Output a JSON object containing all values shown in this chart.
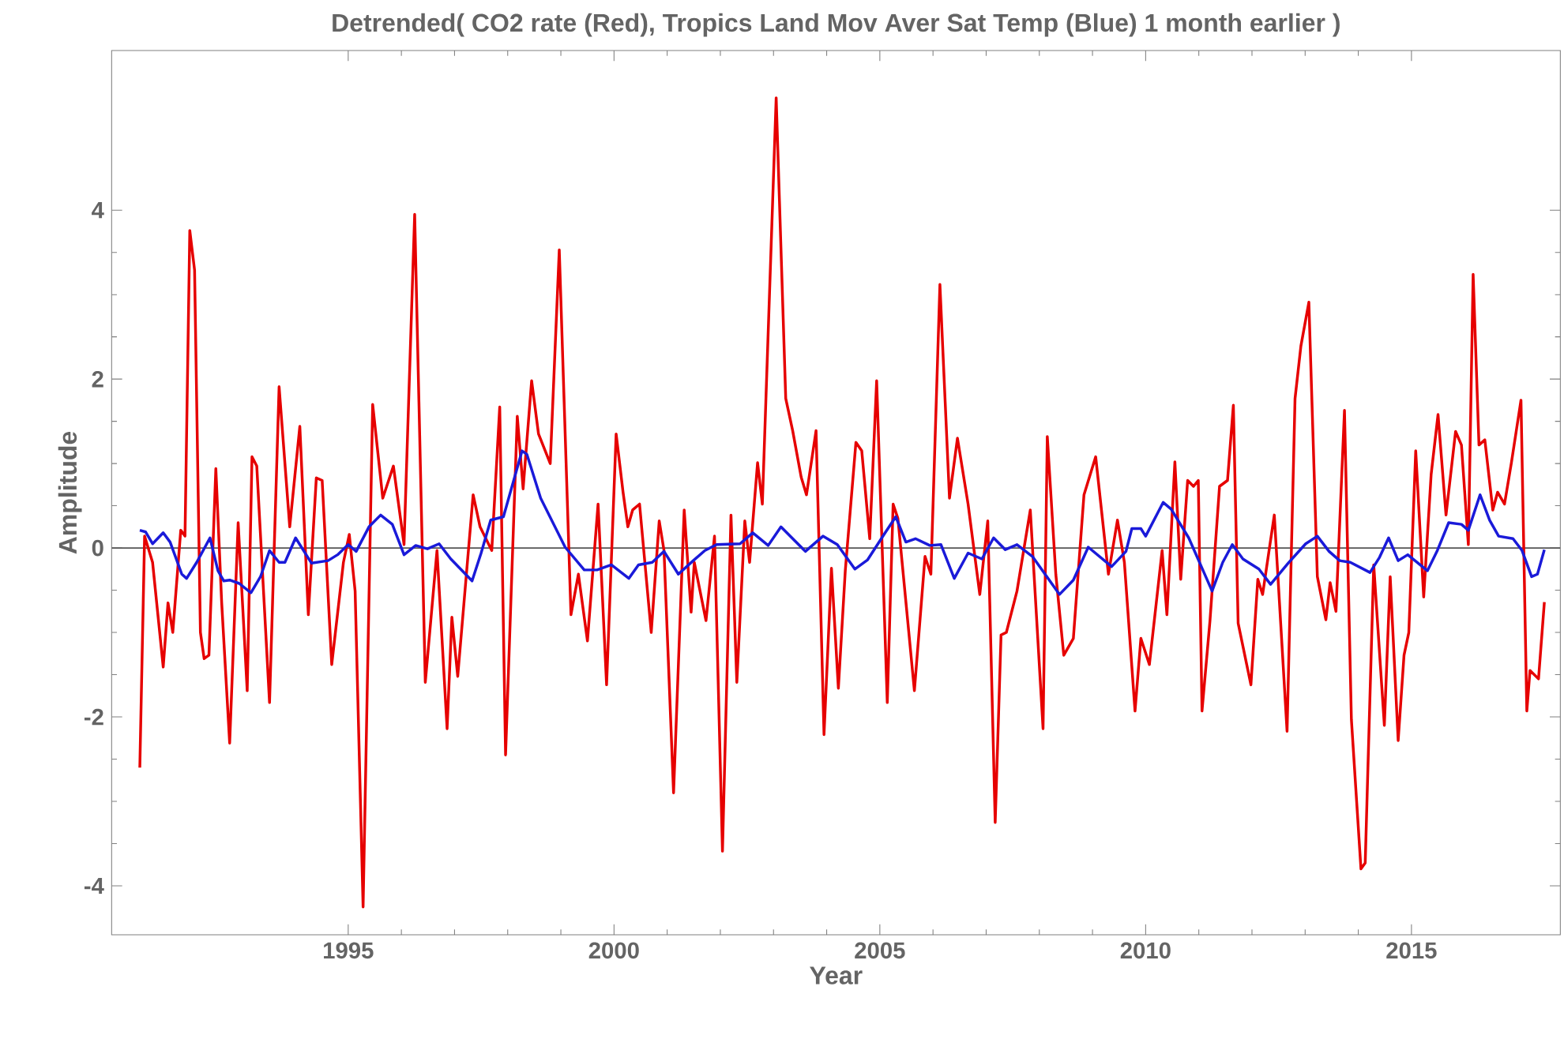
{
  "chart_data": {
    "type": "line",
    "title": "Detrended( CO2 rate (Red), Tropics Land Mov Aver Sat Temp (Blue) 1 month earlier )",
    "xlabel": "Year",
    "ylabel": "Amplitude",
    "xlim": [
      1990.55,
      2017.8
    ],
    "xticks": [
      1995,
      2000,
      2005,
      2010,
      2015
    ],
    "ylim": [
      -4.58,
      5.89
    ],
    "yticks": [
      -4,
      -2,
      0,
      2,
      4
    ],
    "ref_lines": [
      {
        "axis": "y",
        "value": 0,
        "color": "#555555"
      }
    ],
    "series": [
      {
        "color": "#e60000",
        "x": [
          1991.08,
          1991.17,
          1991.32,
          1991.52,
          1991.61,
          1991.7,
          1991.85,
          1991.93,
          1992.02,
          1992.11,
          1992.22,
          1992.29,
          1992.38,
          1992.51,
          1992.62,
          1992.77,
          1992.93,
          1993.1,
          1993.19,
          1993.28,
          1993.52,
          1993.7,
          1993.9,
          1994.09,
          1994.25,
          1994.4,
          1994.51,
          1994.69,
          1994.91,
          1995.02,
          1995.13,
          1995.28,
          1995.46,
          1995.65,
          1995.85,
          1996.05,
          1996.25,
          1996.45,
          1996.67,
          1996.86,
          1996.95,
          1997.06,
          1997.35,
          1997.48,
          1997.7,
          1997.85,
          1997.96,
          1998.18,
          1998.29,
          1998.45,
          1998.58,
          1998.8,
          1998.97,
          1999.19,
          1999.33,
          1999.5,
          1999.7,
          1999.86,
          2000.04,
          2000.17,
          2000.26,
          2000.35,
          2000.48,
          2000.7,
          2000.85,
          2000.94,
          2001.12,
          2001.32,
          2001.45,
          2001.51,
          2001.73,
          2001.89,
          2002.04,
          2002.2,
          2002.31,
          2002.46,
          2002.55,
          2002.7,
          2002.79,
          2003.05,
          2003.23,
          2003.36,
          2003.52,
          2003.62,
          2003.8,
          2003.95,
          2004.09,
          2004.22,
          2004.35,
          2004.55,
          2004.66,
          2004.81,
          2004.94,
          2005.14,
          2005.25,
          2005.34,
          2005.65,
          2005.85,
          2005.96,
          2006.13,
          2006.31,
          2006.46,
          2006.66,
          2006.88,
          2007.03,
          2007.17,
          2007.28,
          2007.38,
          2007.58,
          2007.83,
          2008.07,
          2008.15,
          2008.31,
          2008.46,
          2008.64,
          2008.84,
          2009.06,
          2009.3,
          2009.47,
          2009.6,
          2009.8,
          2009.91,
          2010.07,
          2010.31,
          2010.4,
          2010.55,
          2010.66,
          2010.79,
          2010.9,
          2010.99,
          2011.06,
          2011.21,
          2011.39,
          2011.54,
          2011.65,
          2011.74,
          2011.98,
          2012.11,
          2012.2,
          2012.42,
          2012.66,
          2012.81,
          2012.92,
          2013.07,
          2013.23,
          2013.39,
          2013.47,
          2013.58,
          2013.74,
          2013.87,
          2014.05,
          2014.13,
          2014.29,
          2014.49,
          2014.6,
          2014.75,
          2014.86,
          2014.95,
          2015.08,
          2015.23,
          2015.37,
          2015.5,
          2015.65,
          2015.83,
          2015.94,
          2016.07,
          2016.16,
          2016.27,
          2016.38,
          2016.53,
          2016.62,
          2016.75,
          2016.88,
          2017.06,
          2017.17,
          2017.23,
          2017.39,
          2017.5
        ],
        "values": [
          -2.6,
          0.14,
          -0.17,
          -1.41,
          -0.65,
          -1.0,
          0.21,
          0.14,
          3.76,
          3.29,
          -1.0,
          -1.31,
          -1.27,
          0.94,
          -0.65,
          -2.31,
          0.3,
          -1.69,
          1.08,
          0.97,
          -1.83,
          1.91,
          0.25,
          1.44,
          -0.79,
          0.83,
          0.8,
          -1.38,
          -0.17,
          0.16,
          -0.51,
          -4.25,
          1.7,
          0.59,
          0.97,
          0.04,
          3.95,
          -1.59,
          -0.03,
          -2.14,
          -0.82,
          -1.52,
          0.63,
          0.25,
          -0.03,
          1.67,
          -2.45,
          1.56,
          0.7,
          1.98,
          1.35,
          1.0,
          3.53,
          -0.79,
          -0.31,
          -1.1,
          0.52,
          -1.62,
          1.35,
          0.66,
          0.25,
          0.45,
          0.52,
          -1.0,
          0.32,
          -0.03,
          -2.9,
          0.45,
          -0.76,
          -0.17,
          -0.86,
          0.14,
          -3.59,
          0.39,
          -1.59,
          0.32,
          -0.17,
          1.01,
          0.52,
          5.33,
          1.77,
          1.39,
          0.84,
          0.63,
          1.39,
          -2.21,
          -0.24,
          -1.66,
          -0.27,
          1.25,
          1.15,
          0.11,
          1.98,
          -1.83,
          0.52,
          0.35,
          -1.69,
          -0.1,
          -0.31,
          3.12,
          0.59,
          1.3,
          0.52,
          -0.55,
          0.32,
          -3.25,
          -1.03,
          -1.0,
          -0.51,
          0.45,
          -2.14,
          1.32,
          -0.31,
          -1.27,
          -1.07,
          0.63,
          1.08,
          -0.31,
          0.33,
          -0.17,
          -1.93,
          -1.07,
          -1.38,
          -0.03,
          -0.79,
          1.02,
          -0.37,
          0.8,
          0.73,
          0.8,
          -1.93,
          -0.86,
          0.73,
          0.8,
          1.69,
          -0.89,
          -1.62,
          -0.37,
          -0.55,
          0.39,
          -2.17,
          1.77,
          2.39,
          2.91,
          -0.34,
          -0.85,
          -0.41,
          -0.75,
          1.63,
          -2.03,
          -3.8,
          -3.73,
          -0.2,
          -2.1,
          -0.34,
          -2.28,
          -1.27,
          -1.0,
          1.15,
          -0.58,
          0.87,
          1.58,
          0.39,
          1.38,
          1.22,
          0.04,
          3.24,
          1.22,
          1.28,
          0.45,
          0.66,
          0.52,
          1.01,
          1.75,
          -1.93,
          -1.45,
          -1.55,
          -0.64
        ]
      },
      {
        "color": "#1a1ad9",
        "x": [
          1991.08,
          1991.19,
          1991.32,
          1991.52,
          1991.65,
          1991.87,
          1991.96,
          1992.15,
          1992.4,
          1992.55,
          1992.66,
          1992.77,
          1992.95,
          1993.17,
          1993.35,
          1993.52,
          1993.7,
          1993.81,
          1994.01,
          1994.31,
          1994.62,
          1994.8,
          1995.0,
          1995.15,
          1995.39,
          1995.61,
          1995.83,
          1996.05,
          1996.27,
          1996.49,
          1996.71,
          1996.93,
          1997.33,
          1997.5,
          1997.68,
          1997.92,
          1998.27,
          1998.36,
          1998.62,
          1999.08,
          1999.44,
          1999.68,
          1999.95,
          2000.28,
          2000.46,
          2000.72,
          2000.94,
          2001.21,
          2001.49,
          2001.71,
          2001.93,
          2002.37,
          2002.61,
          2002.9,
          2003.14,
          2003.6,
          2003.93,
          2004.2,
          2004.53,
          2004.77,
          2005.1,
          2005.3,
          2005.49,
          2005.67,
          2005.94,
          2006.15,
          2006.4,
          2006.66,
          2006.92,
          2007.14,
          2007.36,
          2007.58,
          2007.87,
          2008.38,
          2008.64,
          2008.92,
          2009.36,
          2009.63,
          2009.74,
          2009.91,
          2010.0,
          2010.33,
          2010.48,
          2010.81,
          2011.25,
          2011.45,
          2011.63,
          2011.83,
          2012.13,
          2012.35,
          2012.68,
          2013.01,
          2013.23,
          2013.45,
          2013.65,
          2013.85,
          2014.22,
          2014.4,
          2014.57,
          2014.75,
          2014.93,
          2015.3,
          2015.48,
          2015.7,
          2015.94,
          2016.07,
          2016.29,
          2016.47,
          2016.64,
          2016.91,
          2017.08,
          2017.26,
          2017.37,
          2017.5
        ],
        "values": [
          0.21,
          0.19,
          0.05,
          0.18,
          0.07,
          -0.31,
          -0.36,
          -0.17,
          0.12,
          -0.27,
          -0.39,
          -0.38,
          -0.42,
          -0.53,
          -0.34,
          -0.03,
          -0.17,
          -0.17,
          0.12,
          -0.18,
          -0.15,
          -0.08,
          0.04,
          -0.04,
          0.25,
          0.39,
          0.28,
          -0.08,
          0.03,
          -0.01,
          0.05,
          -0.13,
          -0.39,
          -0.06,
          0.33,
          0.37,
          1.15,
          1.11,
          0.59,
          0.01,
          -0.26,
          -0.26,
          -0.2,
          -0.36,
          -0.2,
          -0.17,
          -0.04,
          -0.31,
          -0.15,
          -0.03,
          0.04,
          0.05,
          0.18,
          0.03,
          0.25,
          -0.04,
          0.14,
          0.04,
          -0.25,
          -0.14,
          0.18,
          0.37,
          0.07,
          0.11,
          0.03,
          0.04,
          -0.36,
          -0.06,
          -0.13,
          0.12,
          -0.02,
          0.04,
          -0.1,
          -0.55,
          -0.38,
          0.01,
          -0.22,
          -0.04,
          0.23,
          0.23,
          0.14,
          0.54,
          0.46,
          0.12,
          -0.51,
          -0.17,
          0.04,
          -0.13,
          -0.25,
          -0.43,
          -0.18,
          0.05,
          0.14,
          -0.04,
          -0.15,
          -0.17,
          -0.29,
          -0.11,
          0.12,
          -0.15,
          -0.08,
          -0.27,
          -0.04,
          0.3,
          0.28,
          0.21,
          0.63,
          0.33,
          0.14,
          0.11,
          -0.03,
          -0.34,
          -0.31,
          -0.02
        ]
      }
    ]
  }
}
